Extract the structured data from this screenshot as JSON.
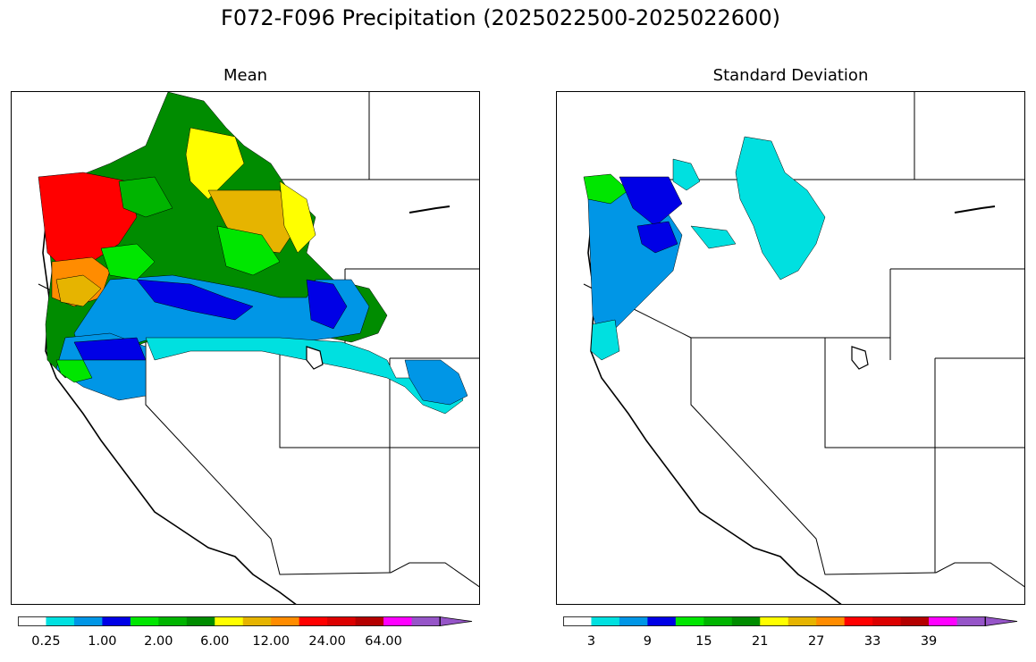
{
  "title": "F072-F096 Precipitation (2025022500-2025022600)",
  "panels": [
    {
      "title": "Mean",
      "colorbar": {
        "colors": [
          "#ffffff",
          "#00e0e0",
          "#0096e6",
          "#0000e6",
          "#00e600",
          "#00b400",
          "#008c00",
          "#ffff00",
          "#e6b400",
          "#ff8c00",
          "#ff0000",
          "#dc0000",
          "#b40000",
          "#ff00ff",
          "#9655c8"
        ],
        "tick_labels": [
          "0.25",
          "1.00",
          "2.00",
          "6.00",
          "12.00",
          "24.00",
          "64.00"
        ]
      }
    },
    {
      "title": "Standard Deviation",
      "colorbar": {
        "colors": [
          "#ffffff",
          "#00e0e0",
          "#0096e6",
          "#0000e6",
          "#00e600",
          "#00b400",
          "#008c00",
          "#ffff00",
          "#e6b400",
          "#ff8c00",
          "#ff0000",
          "#dc0000",
          "#b40000",
          "#ff00ff",
          "#9655c8"
        ],
        "tick_labels": [
          "3",
          "9",
          "15",
          "21",
          "27",
          "33",
          "39"
        ]
      }
    }
  ]
}
